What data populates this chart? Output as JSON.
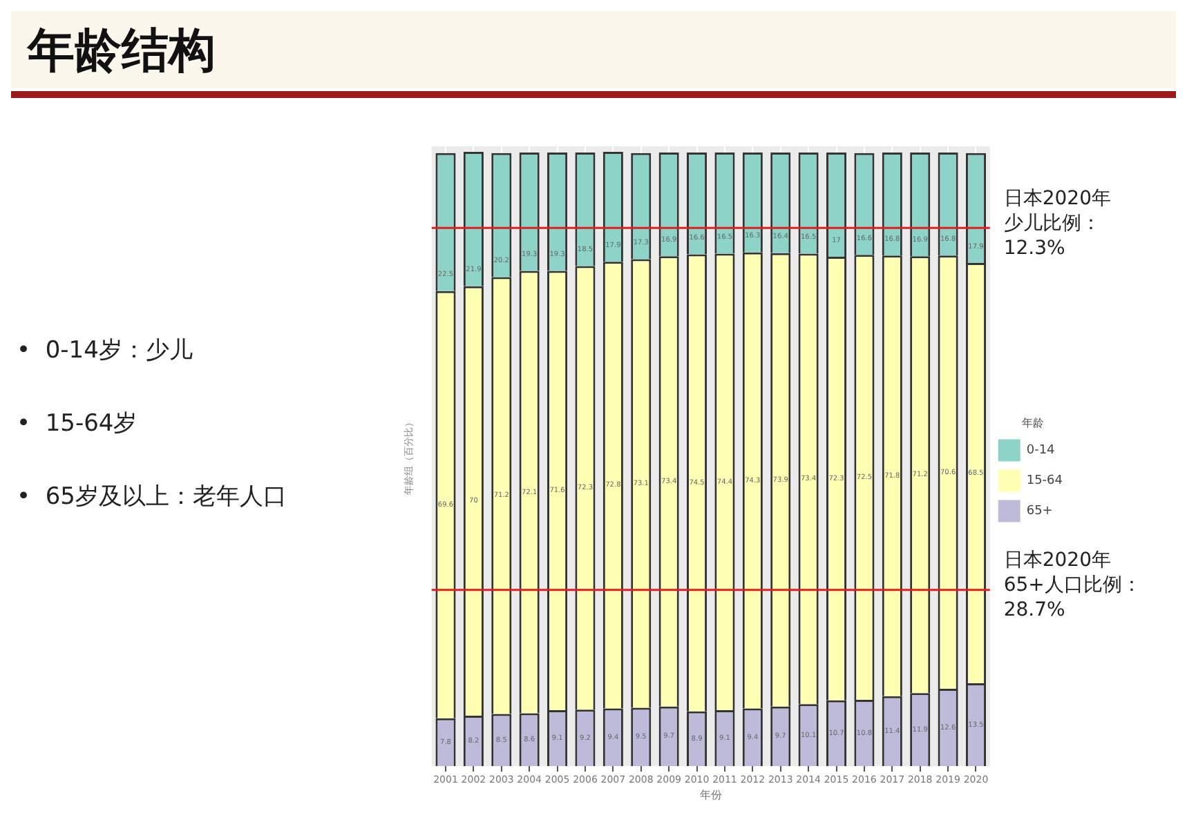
{
  "chart_data": {
    "type": "bar",
    "title": "年龄结构",
    "xlabel": "年份",
    "ylabel": "年龄组（百分比）",
    "legend_title": "年龄",
    "categories": [
      "2001",
      "2002",
      "2003",
      "2004",
      "2005",
      "2006",
      "2007",
      "2008",
      "2009",
      "2010",
      "2011",
      "2012",
      "2013",
      "2014",
      "2015",
      "2016",
      "2017",
      "2018",
      "2019",
      "2020"
    ],
    "series": [
      {
        "name": "65+",
        "color": "#bebada",
        "values": [
          7.8,
          8.2,
          8.5,
          8.6,
          9.1,
          9.2,
          9.4,
          9.5,
          9.7,
          8.9,
          9.1,
          9.4,
          9.7,
          10.1,
          10.7,
          10.8,
          11.4,
          11.9,
          12.6,
          13.5
        ]
      },
      {
        "name": "15-64",
        "color": "#ffffb3",
        "values": [
          69.6,
          70.0,
          71.2,
          72.1,
          71.6,
          72.3,
          72.8,
          73.1,
          73.4,
          74.5,
          74.4,
          74.3,
          73.9,
          73.4,
          72.3,
          72.5,
          71.8,
          71.2,
          70.6,
          68.5
        ]
      },
      {
        "name": "0-14",
        "color": "#8dd3c7",
        "values": [
          22.5,
          21.9,
          20.2,
          19.3,
          19.3,
          18.5,
          17.9,
          17.3,
          16.9,
          16.6,
          16.5,
          16.3,
          16.4,
          16.5,
          17,
          16.6,
          16.8,
          16.9,
          16.8,
          17.9
        ]
      }
    ],
    "stacked": true,
    "ylim": [
      0,
      101
    ],
    "tick_labels": "x",
    "grid": "x",
    "legend": "right",
    "data_labels": true,
    "ref_lines": [
      {
        "axis": "y",
        "value": 87.7,
        "color": "#e02020"
      },
      {
        "axis": "y",
        "value": 28.7,
        "color": "#e02020"
      }
    ],
    "annotations": [
      "•  0-14岁：少儿",
      "•  15-64岁",
      "•  65岁及以上：老年人口",
      "日本2020年",
      "少儿比例：",
      "12.3%",
      "日本2020年",
      "65+人口比例：",
      "28.7%"
    ]
  }
}
